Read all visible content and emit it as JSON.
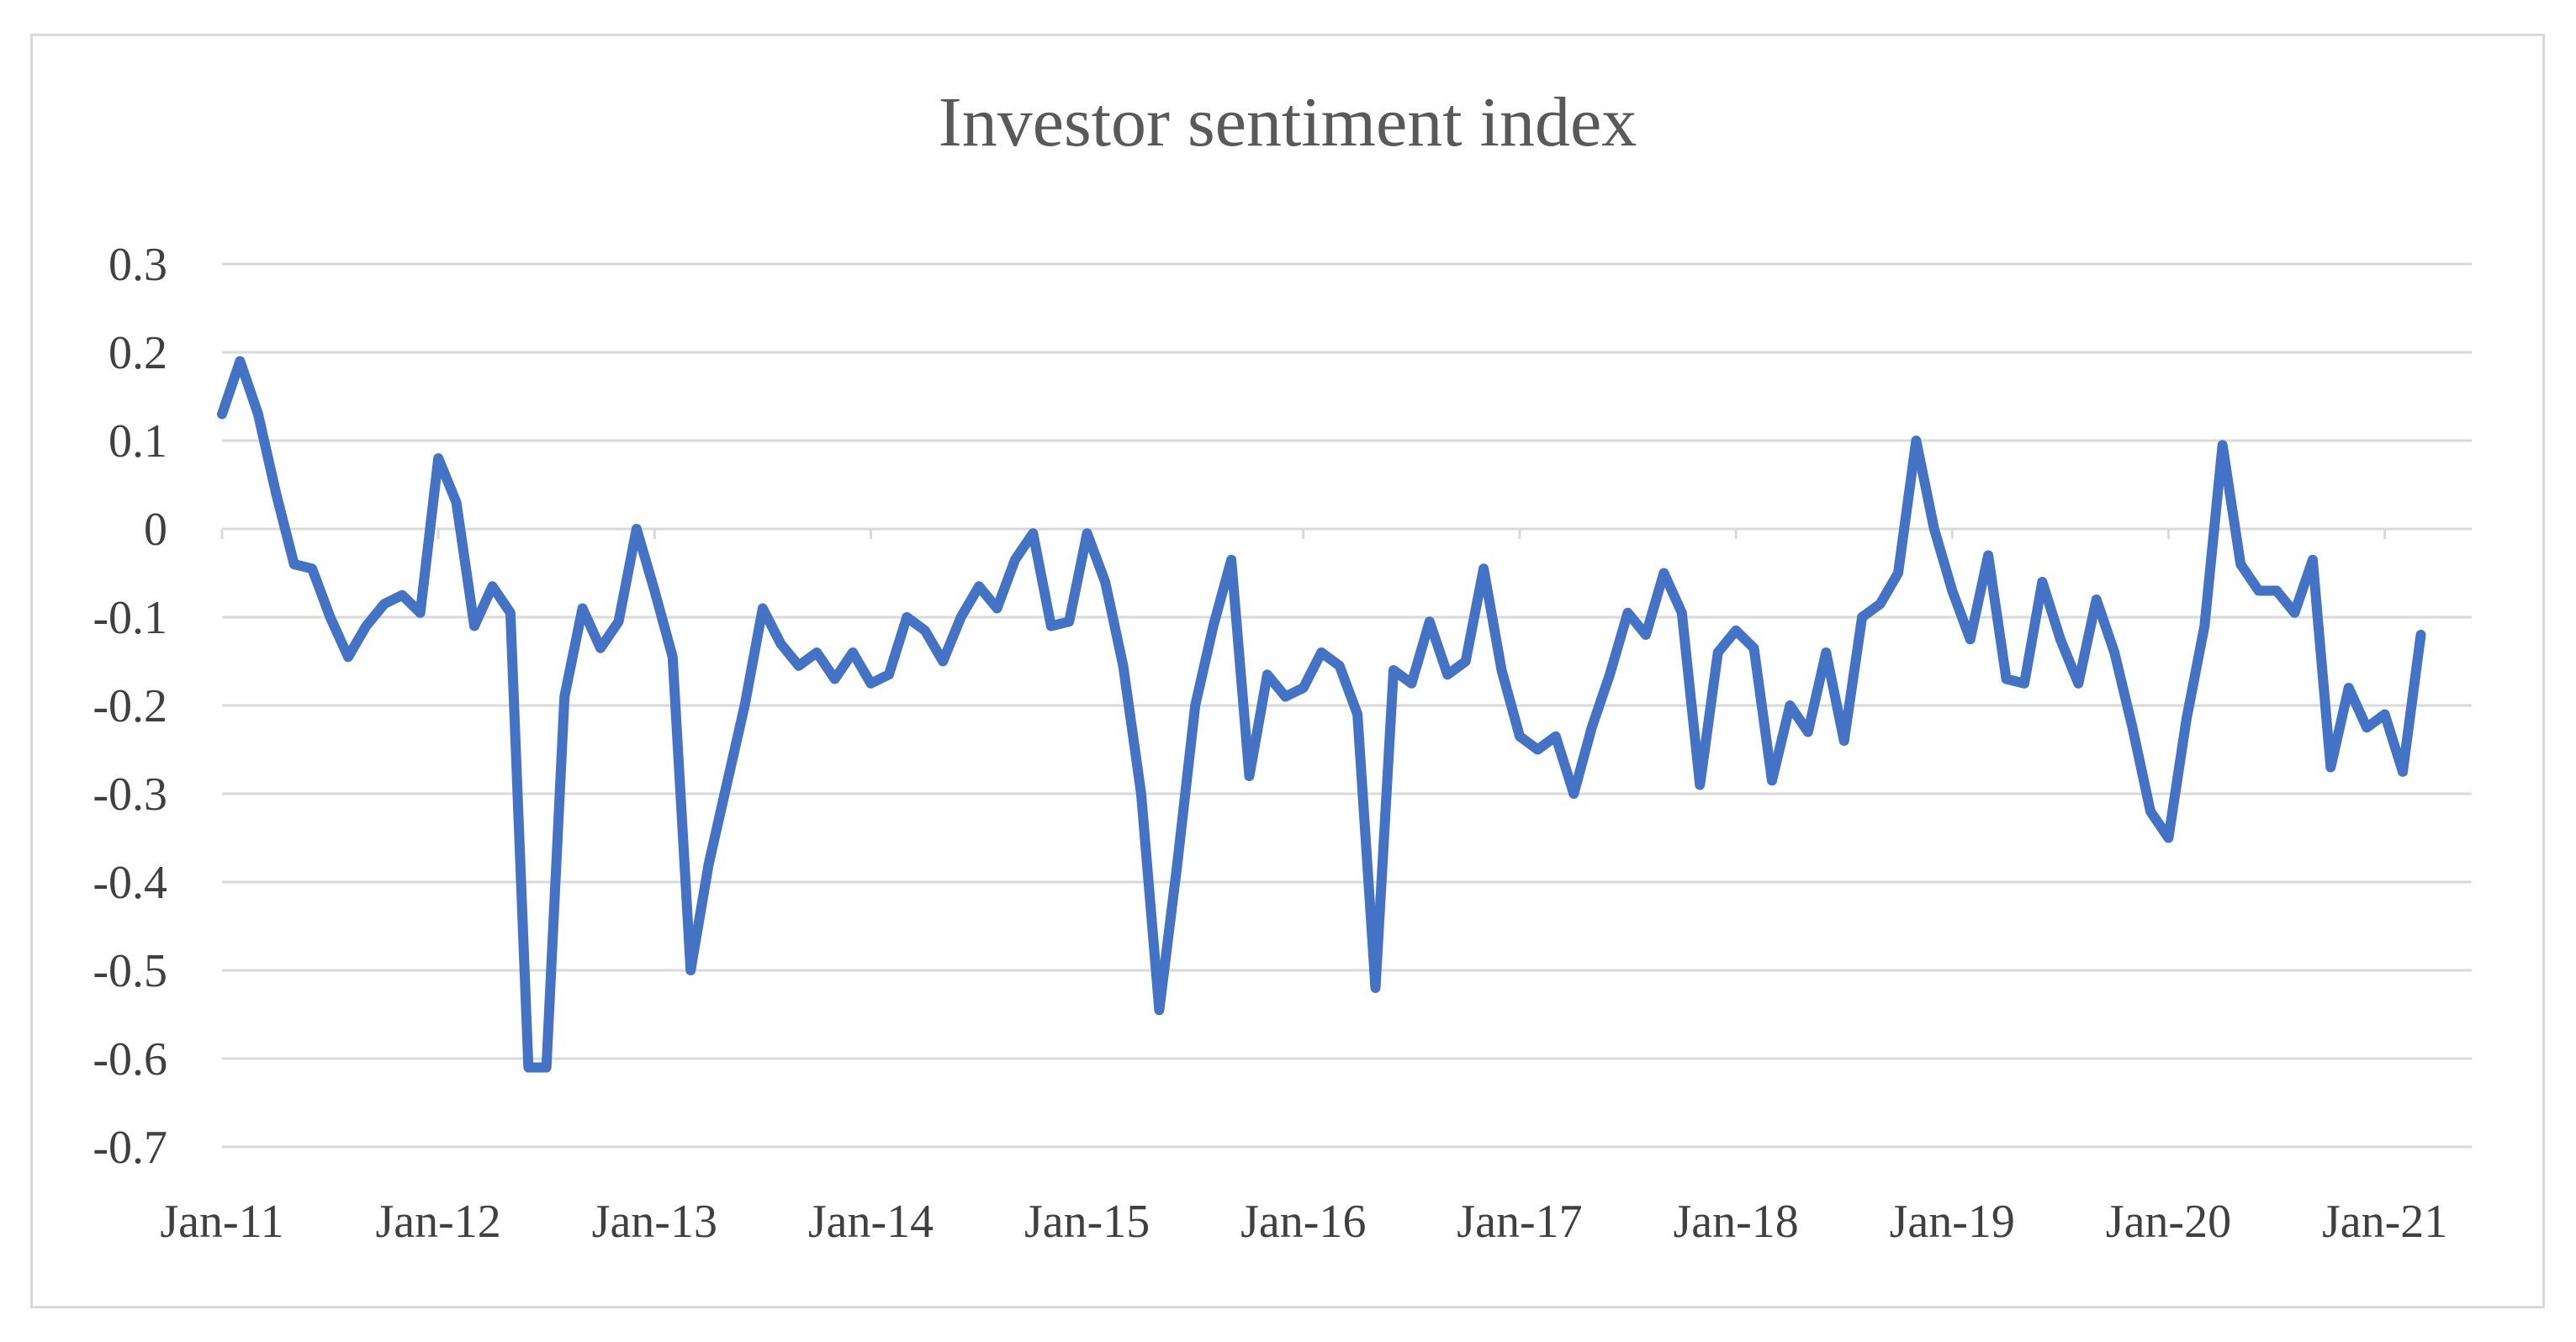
{
  "chart_data": {
    "type": "line",
    "title": "Investor sentiment index",
    "xlabel": "",
    "ylabel": "",
    "ylim": [
      -0.7,
      0.3
    ],
    "yticks": [
      "0.3",
      "0.2",
      "0.1",
      "0",
      "-0.1",
      "-0.2",
      "-0.3",
      "-0.4",
      "-0.5",
      "-0.6",
      "-0.7"
    ],
    "ytick_values": [
      0.3,
      0.2,
      0.1,
      0,
      -0.1,
      -0.2,
      -0.3,
      -0.4,
      -0.5,
      -0.6,
      -0.7
    ],
    "xticks": [
      "Jan-11",
      "Jan-12",
      "Jan-13",
      "Jan-14",
      "Jan-15",
      "Jan-16",
      "Jan-17",
      "Jan-18",
      "Jan-19",
      "Jan-20",
      "Jan-21"
    ],
    "x_start": "Jan-11",
    "x_step": "month",
    "series": [
      {
        "name": "Investor sentiment index",
        "color": "#4472c4",
        "values": [
          0.13,
          0.19,
          0.13,
          0.04,
          -0.04,
          -0.045,
          -0.1,
          -0.145,
          -0.11,
          -0.085,
          -0.075,
          -0.095,
          0.08,
          0.03,
          -0.11,
          -0.065,
          -0.095,
          -0.61,
          -0.61,
          -0.19,
          -0.09,
          -0.135,
          -0.105,
          0.0,
          -0.07,
          -0.145,
          -0.5,
          -0.38,
          -0.29,
          -0.2,
          -0.09,
          -0.13,
          -0.155,
          -0.14,
          -0.17,
          -0.14,
          -0.175,
          -0.165,
          -0.1,
          -0.115,
          -0.15,
          -0.1,
          -0.065,
          -0.09,
          -0.035,
          -0.005,
          -0.11,
          -0.105,
          -0.005,
          -0.06,
          -0.155,
          -0.3,
          -0.545,
          -0.38,
          -0.2,
          -0.11,
          -0.035,
          -0.28,
          -0.165,
          -0.19,
          -0.18,
          -0.14,
          -0.155,
          -0.21,
          -0.52,
          -0.16,
          -0.175,
          -0.105,
          -0.165,
          -0.15,
          -0.045,
          -0.16,
          -0.235,
          -0.25,
          -0.235,
          -0.3,
          -0.225,
          -0.165,
          -0.095,
          -0.12,
          -0.05,
          -0.095,
          -0.29,
          -0.14,
          -0.115,
          -0.135,
          -0.285,
          -0.2,
          -0.23,
          -0.14,
          -0.24,
          -0.1,
          -0.085,
          -0.05,
          0.1,
          0.0,
          -0.07,
          -0.125,
          -0.03,
          -0.17,
          -0.175,
          -0.06,
          -0.125,
          -0.175,
          -0.08,
          -0.14,
          -0.225,
          -0.32,
          -0.35,
          -0.215,
          -0.11,
          0.095,
          -0.04,
          -0.07,
          -0.07,
          -0.095,
          -0.035,
          -0.27,
          -0.18,
          -0.225,
          -0.21,
          -0.275,
          -0.12
        ]
      }
    ]
  }
}
